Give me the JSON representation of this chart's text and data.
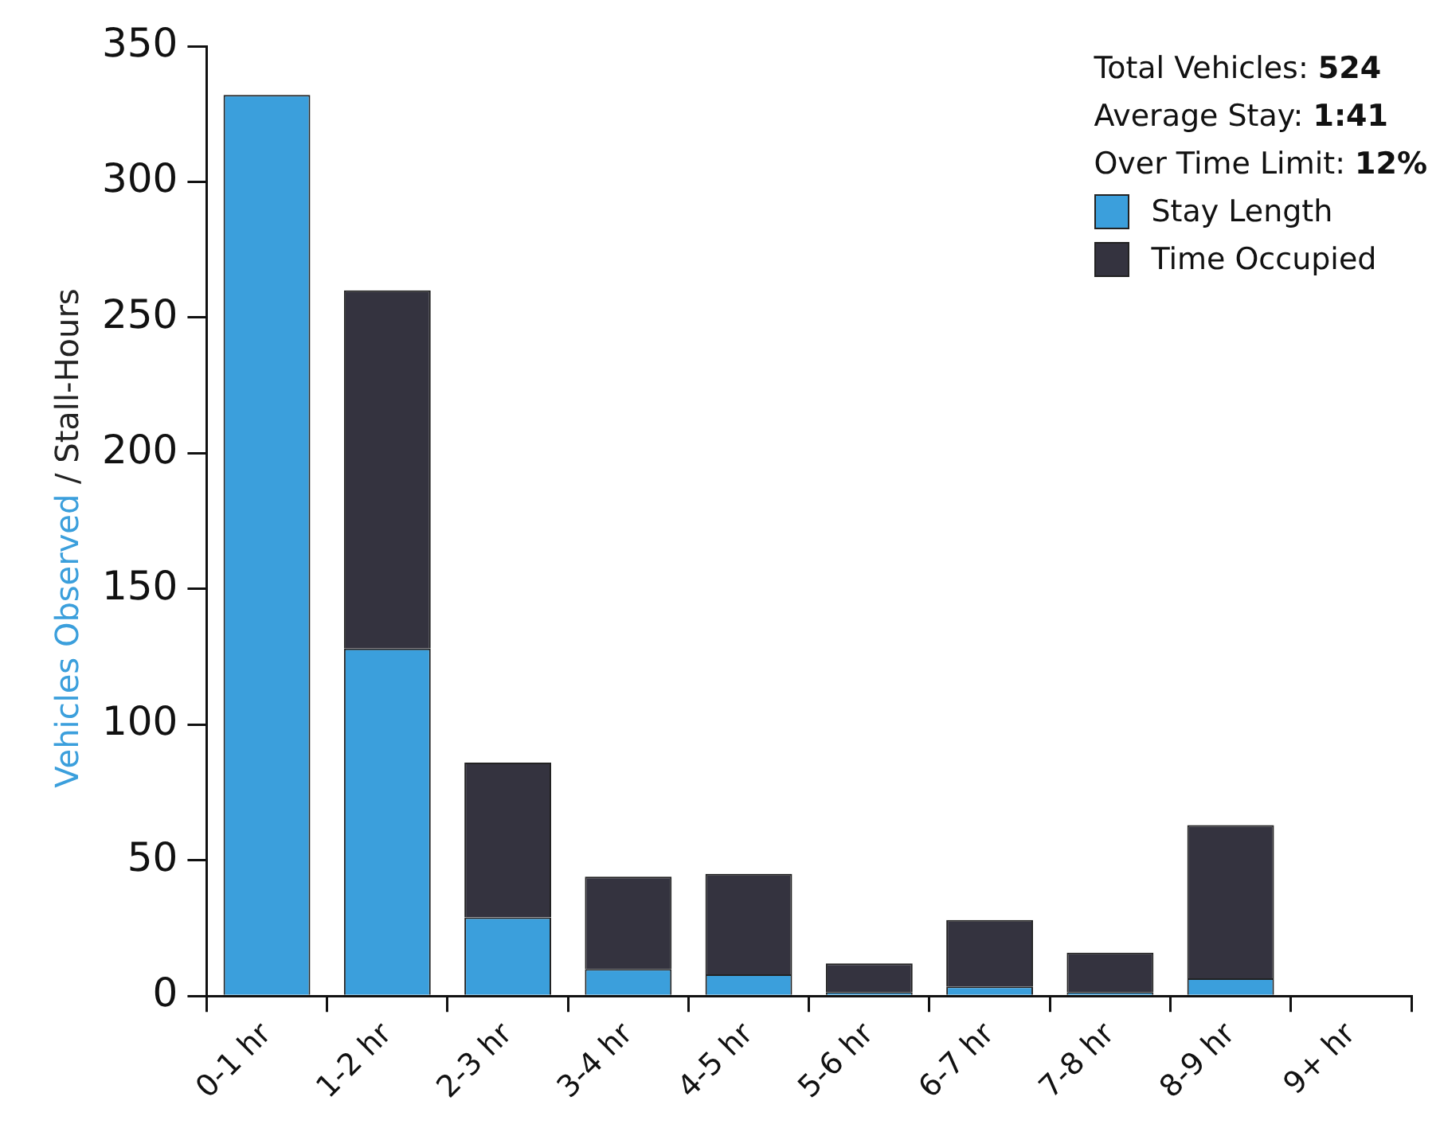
{
  "chart_data": {
    "type": "bar",
    "ylabel": "Vehicles Observed / Stall-Hours",
    "categories": [
      "0-1 hr",
      "1-2 hr",
      "2-3 hr",
      "3-4 hr",
      "4-5 hr",
      "5-6 hr",
      "6-7 hr",
      "7-8 hr",
      "8-9 hr",
      "9+ hr"
    ],
    "series": [
      {
        "name": "Stay Length",
        "color": "#3b9fdc",
        "values": [
          332,
          128,
          29,
          10,
          8,
          1.5,
          3.5,
          1.5,
          6.5,
          0
        ]
      },
      {
        "name": "Time Occupied",
        "color": "#34333f",
        "values": [
          null,
          132,
          57,
          34,
          37,
          10.5,
          24.5,
          14.5,
          56.5,
          0
        ]
      }
    ],
    "stacked": true,
    "ylim": [
      0,
      350
    ],
    "yticks": [
      0,
      50,
      100,
      150,
      200,
      250,
      300,
      350
    ],
    "legend": "top right",
    "annotations": [
      "Total Vehicles: 524",
      "Average Stay: 1:41",
      "Over Time Limit: 12%"
    ]
  }
}
